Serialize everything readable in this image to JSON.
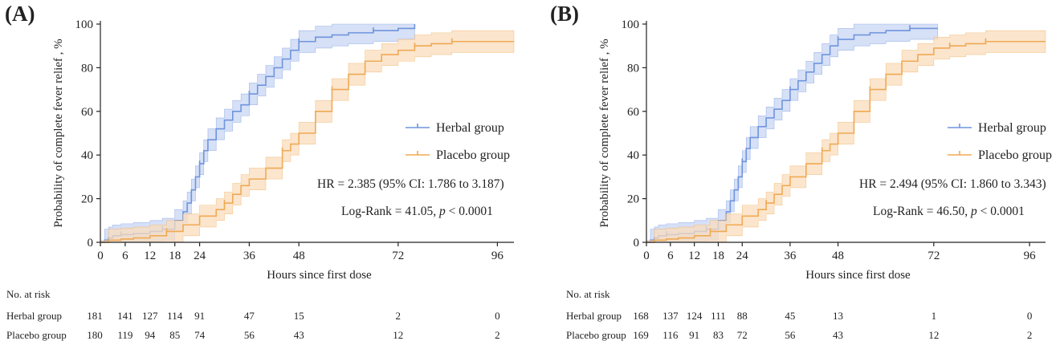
{
  "colors": {
    "herbal": "#6f95dd",
    "herbal_band": "#c8d6f3",
    "placebo": "#efaa54",
    "placebo_band": "#fadcbc",
    "axis": "#222222"
  },
  "chart_data": [
    {
      "type": "line",
      "subtype": "kaplan-meier",
      "panel_label": "(A)",
      "xlabel": "Hours since first dose",
      "ylabel": "Probability of complete fever relief , %",
      "xlim": [
        0,
        100
      ],
      "ylim": [
        0,
        100
      ],
      "x_ticks": [
        0,
        6,
        12,
        18,
        24,
        36,
        48,
        72,
        96
      ],
      "y_ticks": [
        0,
        20,
        40,
        60,
        80,
        100
      ],
      "legend_position": "right",
      "series": [
        {
          "name": "Herbal group",
          "color": "#6f95dd",
          "x": [
            0,
            1,
            2,
            3,
            5,
            8,
            12,
            15,
            18,
            20,
            21,
            22,
            23,
            24,
            25,
            26,
            28,
            30,
            32,
            34,
            36,
            38,
            40,
            42,
            44,
            46,
            48,
            52,
            56,
            60,
            66,
            72,
            76
          ],
          "y": [
            0,
            1,
            2,
            3,
            3.5,
            4,
            5,
            6,
            10,
            14,
            18,
            24,
            30,
            36,
            42,
            47,
            52,
            56,
            60,
            63,
            68,
            72,
            76,
            80,
            84,
            88,
            92,
            94,
            95,
            96,
            97,
            98,
            100
          ],
          "band_halfwidth": 5
        },
        {
          "name": "Placebo group",
          "color": "#efaa54",
          "x": [
            0,
            2,
            5,
            8,
            12,
            16,
            20,
            24,
            28,
            30,
            32,
            34,
            36,
            40,
            44,
            46,
            48,
            52,
            56,
            60,
            64,
            68,
            72,
            76,
            80,
            85,
            90,
            100
          ],
          "y": [
            0,
            1,
            1.5,
            2,
            3,
            5,
            8,
            12,
            15,
            18,
            22,
            26,
            29,
            34,
            42,
            45,
            50,
            60,
            70,
            77,
            83,
            86,
            88,
            90,
            91,
            92,
            92,
            92
          ],
          "band_halfwidth": 5
        }
      ],
      "annotations": {
        "hr": "HR  = 2.385 (95% CI: 1.786 to 3.187)",
        "logrank_prefix": "Log-Rank = 41.05, ",
        "logrank_p": "p",
        "logrank_suffix": " < 0.0001"
      },
      "risk_table": {
        "title": "No. at risk",
        "times": [
          0,
          6,
          12,
          18,
          24,
          36,
          48,
          72,
          96
        ],
        "rows": [
          {
            "label": "Herbal group",
            "values": [
              "181",
              "141",
              "127",
              "114",
              "91",
              "47",
              "15",
              "2",
              "0"
            ]
          },
          {
            "label": "Placebo group",
            "values": [
              "180",
              "119",
              "94",
              "85",
              "74",
              "56",
              "43",
              "12",
              "2"
            ]
          }
        ]
      }
    },
    {
      "type": "line",
      "subtype": "kaplan-meier",
      "panel_label": "(B)",
      "xlabel": "Hours since first dose",
      "ylabel": "Probability of complete fever relief , %",
      "xlim": [
        0,
        100
      ],
      "ylim": [
        0,
        100
      ],
      "x_ticks": [
        0,
        6,
        12,
        18,
        24,
        36,
        48,
        72,
        96
      ],
      "y_ticks": [
        0,
        20,
        40,
        60,
        80,
        100
      ],
      "legend_position": "right",
      "series": [
        {
          "name": "Herbal group",
          "color": "#6f95dd",
          "x": [
            0,
            1,
            2,
            3,
            5,
            8,
            12,
            15,
            18,
            20,
            21,
            22,
            23,
            24,
            25,
            26,
            28,
            30,
            32,
            34,
            36,
            38,
            40,
            42,
            44,
            46,
            48,
            52,
            56,
            60,
            66,
            72,
            73
          ],
          "y": [
            0,
            1,
            2,
            3,
            3.5,
            4,
            5,
            6,
            10,
            14,
            19,
            24,
            30,
            37,
            43,
            48,
            53,
            57,
            61,
            65,
            70,
            74,
            78,
            82,
            86,
            90,
            93,
            95,
            96,
            97,
            98,
            98,
            98
          ],
          "band_halfwidth": 5
        },
        {
          "name": "Placebo group",
          "color": "#efaa54",
          "x": [
            0,
            2,
            5,
            8,
            12,
            16,
            20,
            24,
            28,
            30,
            32,
            34,
            36,
            40,
            44,
            46,
            48,
            52,
            56,
            60,
            64,
            68,
            72,
            76,
            80,
            85,
            90,
            100
          ],
          "y": [
            0,
            1,
            1.5,
            2,
            3,
            5,
            8,
            12,
            15,
            18,
            22,
            26,
            30,
            36,
            42,
            45,
            50,
            60,
            70,
            77,
            83,
            86,
            89,
            90,
            91,
            92,
            92,
            92
          ],
          "band_halfwidth": 5
        }
      ],
      "annotations": {
        "hr": "HR  = 2.494 (95% CI: 1.860 to 3.343)",
        "logrank_prefix": "Log-Rank = 46.50, ",
        "logrank_p": "p",
        "logrank_suffix": " < 0.0001"
      },
      "risk_table": {
        "title": "No. at risk",
        "times": [
          0,
          6,
          12,
          18,
          24,
          36,
          48,
          72,
          96
        ],
        "rows": [
          {
            "label": "Herbal group",
            "values": [
              "168",
              "137",
              "124",
              "111",
              "88",
              "45",
              "13",
              "1",
              "0"
            ]
          },
          {
            "label": "Placebo group",
            "values": [
              "169",
              "116",
              "91",
              "83",
              "72",
              "56",
              "43",
              "12",
              "2"
            ]
          }
        ]
      }
    }
  ]
}
